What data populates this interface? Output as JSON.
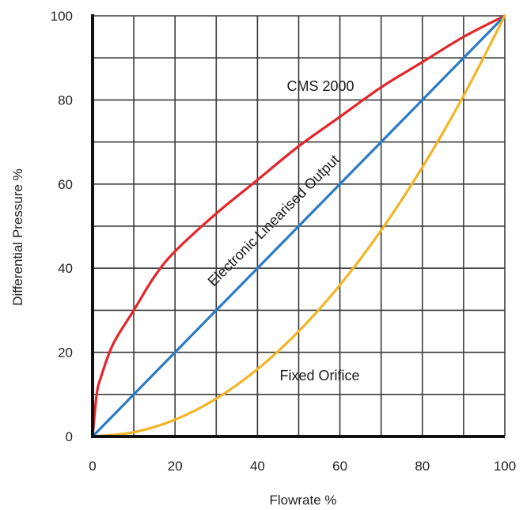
{
  "chart_data": {
    "type": "line",
    "title": "",
    "xlabel": "Flowrate %",
    "ylabel": "Differential Pressure %",
    "xlim": [
      0,
      100
    ],
    "ylim": [
      0,
      100
    ],
    "xticks": [
      0,
      20,
      40,
      60,
      80,
      100
    ],
    "yticks": [
      0,
      20,
      40,
      60,
      80,
      100
    ],
    "grid": true,
    "series": [
      {
        "name": "CMS 2000",
        "color": "#e3262b",
        "x": [
          0,
          1,
          2,
          5,
          10,
          15,
          20,
          30,
          40,
          50,
          60,
          70,
          80,
          90,
          100
        ],
        "y": [
          0,
          10,
          14,
          22,
          30,
          38,
          44,
          53,
          61,
          69,
          76,
          83,
          89,
          95,
          100
        ]
      },
      {
        "name": "Electronic Linearised Output",
        "color": "#2a7bc4",
        "x": [
          0,
          10,
          20,
          30,
          40,
          50,
          60,
          70,
          80,
          90,
          100
        ],
        "y": [
          0,
          10,
          20,
          30,
          40,
          50,
          60,
          70,
          80,
          90,
          100
        ]
      },
      {
        "name": "Fixed Orifice",
        "color": "#f2b526",
        "x": [
          0,
          10,
          20,
          30,
          40,
          50,
          60,
          70,
          80,
          90,
          100
        ],
        "y": [
          0,
          1,
          4,
          9,
          16,
          25,
          36,
          49,
          64,
          81,
          100
        ]
      }
    ]
  }
}
